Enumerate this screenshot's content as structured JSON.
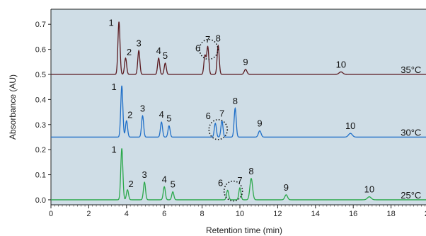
{
  "chart_data": {
    "type": "line",
    "title": "",
    "xlabel": "Retention time (min)",
    "ylabel": "Absorbance (AU)",
    "xlim": [
      0,
      20
    ],
    "ylim": [
      -0.02,
      0.76
    ],
    "x_ticks": [
      0,
      2,
      4,
      6,
      8,
      10,
      12,
      14,
      16,
      18,
      20
    ],
    "x_tick_labels": [
      "0",
      "2",
      "4",
      "6",
      "8",
      "10",
      "12",
      "14",
      "16",
      "18",
      "20"
    ],
    "y_ticks": [
      0.0,
      0.1,
      0.2,
      0.3,
      0.4,
      0.5,
      0.6,
      0.7
    ],
    "y_tick_labels": [
      "0.0",
      "0.1",
      "0.2",
      "0.3",
      "0.4",
      "0.5",
      "0.6",
      "0.7"
    ],
    "grid": false,
    "background_color": "#cfdde6",
    "series": [
      {
        "name": "35°C",
        "color": "#5a1a20",
        "baseline": 0.5,
        "label_x": 19.6,
        "peaks": [
          {
            "label": "1",
            "x": 3.6,
            "y": 0.71
          },
          {
            "label": "2",
            "x": 3.95,
            "y": 0.565
          },
          {
            "label": "3",
            "x": 4.65,
            "y": 0.595
          },
          {
            "label": "4",
            "x": 5.7,
            "y": 0.565
          },
          {
            "label": "5",
            "x": 6.05,
            "y": 0.545
          },
          {
            "label": "6",
            "x": 8.15,
            "y": 0.575
          },
          {
            "label": "7",
            "x": 8.3,
            "y": 0.61
          },
          {
            "label": "8",
            "x": 8.85,
            "y": 0.615
          },
          {
            "label": "9",
            "x": 10.3,
            "y": 0.52
          },
          {
            "label": "10",
            "x": 15.35,
            "y": 0.51
          }
        ]
      },
      {
        "name": "30°C",
        "color": "#1f6fc8",
        "baseline": 0.25,
        "label_x": 19.6,
        "peaks": [
          {
            "label": "1",
            "x": 3.75,
            "y": 0.455
          },
          {
            "label": "2",
            "x": 4.0,
            "y": 0.315
          },
          {
            "label": "3",
            "x": 4.85,
            "y": 0.335
          },
          {
            "label": "4",
            "x": 5.85,
            "y": 0.31
          },
          {
            "label": "5",
            "x": 6.25,
            "y": 0.295
          },
          {
            "label": "6",
            "x": 8.7,
            "y": 0.305
          },
          {
            "label": "7",
            "x": 9.05,
            "y": 0.315
          },
          {
            "label": "8",
            "x": 9.75,
            "y": 0.365
          },
          {
            "label": "9",
            "x": 11.05,
            "y": 0.275
          },
          {
            "label": "10",
            "x": 15.85,
            "y": 0.265
          }
        ]
      },
      {
        "name": "25°C",
        "color": "#2aa84a",
        "baseline": 0.0,
        "label_x": 19.6,
        "peaks": [
          {
            "label": "1",
            "x": 3.75,
            "y": 0.205
          },
          {
            "label": "2",
            "x": 4.05,
            "y": 0.04
          },
          {
            "label": "3",
            "x": 4.95,
            "y": 0.07
          },
          {
            "label": "4",
            "x": 6.0,
            "y": 0.052
          },
          {
            "label": "5",
            "x": 6.45,
            "y": 0.032
          },
          {
            "label": "6",
            "x": 9.35,
            "y": 0.038
          },
          {
            "label": "7",
            "x": 10.0,
            "y": 0.048
          },
          {
            "label": "8",
            "x": 10.6,
            "y": 0.085
          },
          {
            "label": "9",
            "x": 12.45,
            "y": 0.02
          },
          {
            "label": "10",
            "x": 16.85,
            "y": 0.012
          }
        ]
      }
    ],
    "circled_peaks": [
      {
        "series": "35°C",
        "x": 8.35,
        "y": 0.6
      },
      {
        "series": "30°C",
        "x": 8.85,
        "y": 0.28
      },
      {
        "series": "25°C",
        "x": 9.65,
        "y": 0.035
      }
    ]
  }
}
